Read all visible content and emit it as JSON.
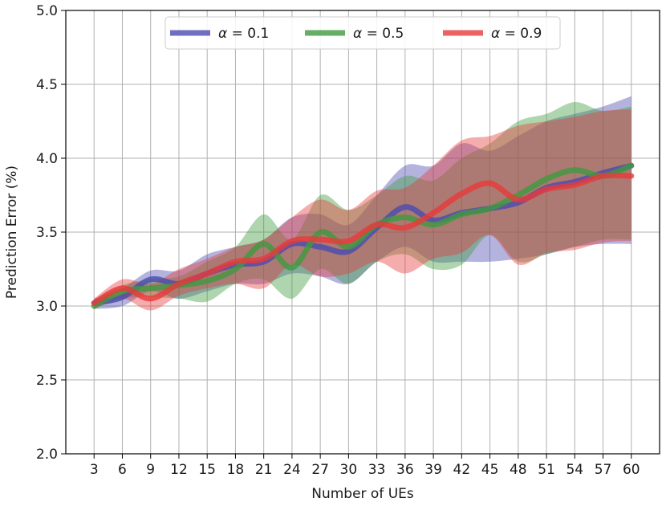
{
  "chart_data": {
    "type": "line",
    "title": "",
    "xlabel": "Number of UEs",
    "ylabel": "Prediction Error (%)",
    "x": [
      3,
      6,
      9,
      12,
      15,
      18,
      21,
      24,
      27,
      30,
      33,
      36,
      39,
      42,
      45,
      48,
      51,
      54,
      57,
      60
    ],
    "xticks": [
      "3",
      "6",
      "9",
      "12",
      "15",
      "18",
      "21",
      "24",
      "27",
      "30",
      "33",
      "36",
      "39",
      "42",
      "45",
      "48",
      "51",
      "54",
      "57",
      "60"
    ],
    "yticks": [
      "2.0",
      "2.5",
      "3.0",
      "3.5",
      "4.0",
      "4.5",
      "5.0"
    ],
    "xlim": [
      0,
      63
    ],
    "ylim": [
      2.0,
      5.0
    ],
    "grid": true,
    "legend_position": "top-center",
    "series": [
      {
        "name": "α = 0.1",
        "symbol": "α",
        "value_label": "= 0.1",
        "color": "#4b4bb0",
        "values": [
          3.02,
          3.06,
          3.18,
          3.15,
          3.22,
          3.28,
          3.3,
          3.42,
          3.4,
          3.37,
          3.53,
          3.67,
          3.58,
          3.63,
          3.66,
          3.7,
          3.8,
          3.84,
          3.9,
          3.95
        ],
        "upper": [
          3.05,
          3.12,
          3.24,
          3.24,
          3.35,
          3.4,
          3.45,
          3.6,
          3.62,
          3.55,
          3.75,
          3.95,
          3.95,
          4.1,
          4.05,
          4.15,
          4.25,
          4.3,
          4.35,
          4.42
        ],
        "lower": [
          2.98,
          3.0,
          3.1,
          3.05,
          3.1,
          3.15,
          3.15,
          3.22,
          3.2,
          3.15,
          3.3,
          3.4,
          3.3,
          3.3,
          3.3,
          3.32,
          3.35,
          3.4,
          3.42,
          3.42
        ]
      },
      {
        "name": "α = 0.5",
        "symbol": "α",
        "value_label": "= 0.5",
        "color": "#3f9a3f",
        "values": [
          3.0,
          3.1,
          3.12,
          3.14,
          3.17,
          3.25,
          3.42,
          3.26,
          3.5,
          3.4,
          3.55,
          3.6,
          3.55,
          3.62,
          3.66,
          3.75,
          3.86,
          3.92,
          3.88,
          3.95
        ],
        "upper": [
          3.04,
          3.14,
          3.18,
          3.2,
          3.3,
          3.4,
          3.62,
          3.45,
          3.75,
          3.65,
          3.75,
          3.88,
          3.85,
          4.0,
          4.1,
          4.25,
          4.3,
          4.38,
          4.32,
          4.35
        ],
        "lower": [
          2.98,
          3.05,
          3.06,
          3.05,
          3.03,
          3.15,
          3.18,
          3.05,
          3.25,
          3.15,
          3.3,
          3.35,
          3.25,
          3.28,
          3.48,
          3.3,
          3.35,
          3.4,
          3.45,
          3.45
        ]
      },
      {
        "name": "α = 0.9",
        "symbol": "α",
        "value_label": "= 0.9",
        "color": "#e83a3a",
        "values": [
          3.02,
          3.12,
          3.05,
          3.15,
          3.22,
          3.3,
          3.32,
          3.44,
          3.45,
          3.44,
          3.55,
          3.53,
          3.63,
          3.76,
          3.83,
          3.72,
          3.79,
          3.82,
          3.88,
          3.88
        ],
        "upper": [
          3.05,
          3.18,
          3.15,
          3.25,
          3.32,
          3.4,
          3.45,
          3.6,
          3.72,
          3.65,
          3.78,
          3.8,
          3.95,
          4.12,
          4.15,
          4.22,
          4.25,
          4.28,
          4.32,
          4.33
        ],
        "lower": [
          2.98,
          3.05,
          2.97,
          3.07,
          3.12,
          3.15,
          3.12,
          3.28,
          3.2,
          3.22,
          3.3,
          3.22,
          3.32,
          3.36,
          3.48,
          3.28,
          3.36,
          3.38,
          3.43,
          3.44
        ]
      }
    ]
  }
}
